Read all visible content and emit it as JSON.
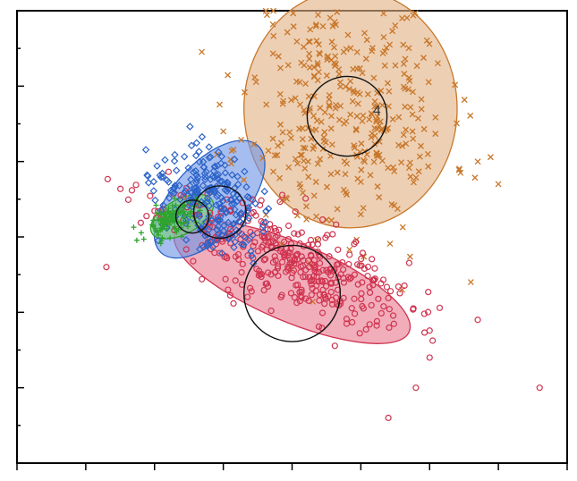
{
  "chart_data": {
    "type": "scatter",
    "title": "",
    "xlabel": "",
    "ylabel": "",
    "xlim": [
      -4,
      4
    ],
    "ylim": [
      -3,
      3
    ],
    "grid": false,
    "legend": "none",
    "annotation": "4",
    "series": [
      {
        "marker": "x",
        "color": "#c8772a",
        "fill": "#e2b285",
        "seed": 11,
        "n": 360,
        "center": [
          0.8,
          1.7
        ],
        "spread": [
          0.75,
          0.85
        ],
        "tilt_deg": 0,
        "outliers": [
          [
            1.6,
            2.9
          ],
          [
            2.7,
            1.0
          ],
          [
            1.6,
            -0.7
          ],
          [
            3.0,
            0.7
          ],
          [
            -1.0,
            1.4
          ],
          [
            2.6,
            -0.6
          ]
        ],
        "ellipse": {
          "center": [
            0.85,
            1.7
          ],
          "rx": 1.55,
          "ry": 1.58,
          "tilt_deg": 0
        },
        "circle": {
          "center": [
            0.8,
            1.6
          ],
          "r": 0.58
        }
      },
      {
        "marker": "o",
        "color": "#d0334f",
        "fill": "#e97b8f",
        "seed": 23,
        "n": 380,
        "center": [
          -0.1,
          -0.3
        ],
        "spread": [
          0.95,
          0.28
        ],
        "tilt_deg": -23,
        "outliers": [
          [
            -2.7,
            -0.4
          ],
          [
            3.6,
            -2.0
          ],
          [
            1.4,
            -2.4
          ],
          [
            1.8,
            -2.0
          ],
          [
            2.0,
            -1.6
          ],
          [
            2.7,
            -1.1
          ]
        ],
        "ellipse": {
          "center": [
            0.0,
            -0.6
          ],
          "rx": 1.85,
          "ry": 0.52,
          "tilt_deg": -23
        },
        "circle": {
          "center": [
            0.0,
            -0.75
          ],
          "r": 0.7
        }
      },
      {
        "marker": "diamond",
        "color": "#2b63c9",
        "fill": "#6f95e6",
        "seed": 37,
        "n": 230,
        "center": [
          -1.25,
          0.5
        ],
        "spread": [
          0.28,
          0.45
        ],
        "tilt_deg": 50,
        "outliers": [],
        "ellipse": {
          "center": [
            -1.2,
            0.5
          ],
          "rx": 1.05,
          "ry": 0.48,
          "tilt_deg": 48
        },
        "circle": {
          "center": [
            -1.05,
            0.33
          ],
          "r": 0.38
        }
      },
      {
        "marker": "plus",
        "color": "#2fa42f",
        "fill": "#78cf78",
        "seed": 53,
        "n": 120,
        "center": [
          -1.75,
          0.25
        ],
        "spread": [
          0.22,
          0.1
        ],
        "tilt_deg": 25,
        "outliers": [],
        "ellipse": {
          "center": [
            -1.6,
            0.27
          ],
          "rx": 0.5,
          "ry": 0.23,
          "tilt_deg": 28
        },
        "circle": {
          "center": [
            -1.45,
            0.27
          ],
          "r": 0.24
        }
      }
    ]
  }
}
